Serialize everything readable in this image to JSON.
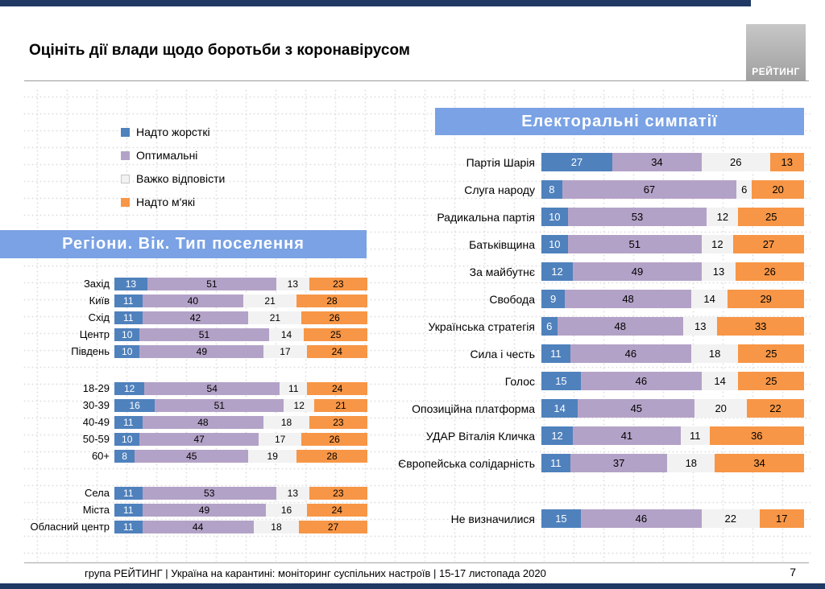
{
  "title": "Оцініть дії влади щодо боротьби з коронавірусом",
  "logo_text": "РЕЙТИНГ",
  "legend": [
    {
      "label": "Надто жорсткі",
      "color": "#4f81bd"
    },
    {
      "label": "Оптимальні",
      "color": "#b3a2c7"
    },
    {
      "label": "Важко відповісти",
      "color": "#f2f2f2",
      "border": "#c6c6c6"
    },
    {
      "label": "Надто м'які",
      "color": "#f79646"
    }
  ],
  "footer": {
    "text": "група РЕЙТИНГ | Україна на карантині: моніторинг суспільних настроїв | 15-17 листопада 2020",
    "page": "7"
  },
  "colors": {
    "too_strict": "#4f81bd",
    "optimal": "#b3a2c7",
    "hard_to_say": "#f2f2f2",
    "too_soft": "#f79646",
    "banner_blue": "#7aa2e4",
    "navy_border": "#1f3864"
  },
  "chart_data": [
    {
      "type": "bar",
      "orientation": "horizontal",
      "stacked": true,
      "unit": "%",
      "xlim": [
        0,
        100
      ],
      "title": "Регіони. Вік. Тип поселення",
      "series_names": [
        "Надто жорсткі",
        "Оптимальні",
        "Важко відповісти",
        "Надто м'які"
      ],
      "groups": [
        {
          "rows": [
            {
              "label": "Захід",
              "values": [
                13,
                51,
                13,
                23
              ]
            },
            {
              "label": "Київ",
              "values": [
                11,
                40,
                21,
                28
              ]
            },
            {
              "label": "Схід",
              "values": [
                11,
                42,
                21,
                26
              ]
            },
            {
              "label": "Центр",
              "values": [
                10,
                51,
                14,
                25
              ]
            },
            {
              "label": "Південь",
              "values": [
                10,
                49,
                17,
                24
              ]
            }
          ]
        },
        {
          "rows": [
            {
              "label": "18-29",
              "values": [
                12,
                54,
                11,
                24
              ]
            },
            {
              "label": "30-39",
              "values": [
                16,
                51,
                12,
                21
              ]
            },
            {
              "label": "40-49",
              "values": [
                11,
                48,
                18,
                23
              ]
            },
            {
              "label": "50-59",
              "values": [
                10,
                47,
                17,
                26
              ]
            },
            {
              "label": "60+",
              "values": [
                8,
                45,
                19,
                28
              ]
            }
          ]
        },
        {
          "rows": [
            {
              "label": "Села",
              "values": [
                11,
                53,
                13,
                23
              ]
            },
            {
              "label": "Міста",
              "values": [
                11,
                49,
                16,
                24
              ]
            },
            {
              "label": "Обласний центр",
              "values": [
                11,
                44,
                18,
                27
              ]
            }
          ]
        }
      ]
    },
    {
      "type": "bar",
      "orientation": "horizontal",
      "stacked": true,
      "unit": "%",
      "xlim": [
        0,
        100
      ],
      "title": "Електоральні симпатії",
      "series_names": [
        "Надто жорсткі",
        "Оптимальні",
        "Важко відповісти",
        "Надто м'які"
      ],
      "groups": [
        {
          "rows": [
            {
              "label": "Партія Шарія",
              "values": [
                27,
                34,
                26,
                13
              ]
            },
            {
              "label": "Слуга народу",
              "values": [
                8,
                67,
                6,
                20
              ]
            },
            {
              "label": "Радикальна партія",
              "values": [
                10,
                53,
                12,
                25
              ]
            },
            {
              "label": "Батьківщина",
              "values": [
                10,
                51,
                12,
                27
              ]
            },
            {
              "label": "За майбутнє",
              "values": [
                12,
                49,
                13,
                26
              ]
            },
            {
              "label": "Свобода",
              "values": [
                9,
                48,
                14,
                29
              ]
            },
            {
              "label": "Українська стратегія",
              "values": [
                6,
                48,
                13,
                33
              ]
            },
            {
              "label": "Сила і честь",
              "values": [
                11,
                46,
                18,
                25
              ]
            },
            {
              "label": "Голос",
              "values": [
                15,
                46,
                14,
                25
              ]
            },
            {
              "label": "Опозиційна платформа",
              "values": [
                14,
                45,
                20,
                22
              ]
            },
            {
              "label": "УДАР Віталія Кличка",
              "values": [
                12,
                41,
                11,
                36
              ]
            },
            {
              "label": "Європейська солідарність",
              "values": [
                11,
                37,
                18,
                34
              ]
            }
          ]
        },
        {
          "rows": [
            {
              "label": "Не визначилися",
              "values": [
                15,
                46,
                22,
                17
              ]
            }
          ]
        }
      ]
    }
  ]
}
